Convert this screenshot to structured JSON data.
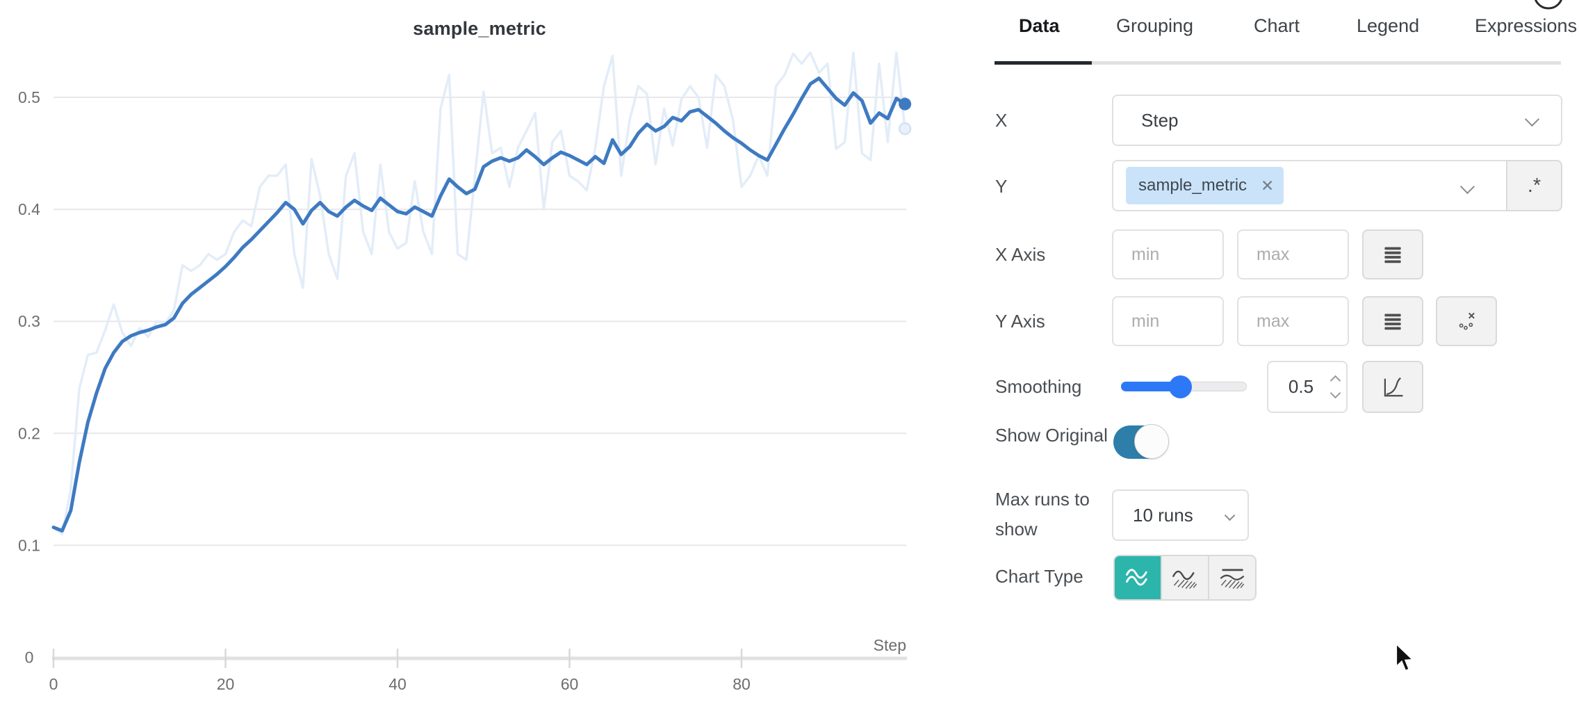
{
  "colors": {
    "smoothed_line": "#3e7ac2",
    "original_line": "#e3edf8",
    "grid": "#e8e8e8",
    "axis": "#e1e1e1",
    "slider_blue": "#2d78f6",
    "toggle_blue": "#2d7fa9",
    "selected_teal": "#2cb5ab",
    "chip_bg": "#cbe3f9"
  },
  "chart_data": {
    "type": "line",
    "title": "sample_metric",
    "xlabel": "Step",
    "ylabel": "",
    "xlim": [
      0,
      99
    ],
    "ylim": [
      0,
      0.54
    ],
    "grid": "horizontal only",
    "legend": "none",
    "x_ticks": [
      {
        "label": "0",
        "value": 0
      },
      {
        "label": "20",
        "value": 20
      },
      {
        "label": "40",
        "value": 40
      },
      {
        "label": "60",
        "value": 60
      },
      {
        "label": "80",
        "value": 80
      }
    ],
    "y_ticks": [
      {
        "label": "0.5",
        "value": 0.5
      },
      {
        "label": "0.4",
        "value": 0.4
      },
      {
        "label": "0.3",
        "value": 0.3
      },
      {
        "label": "0.2",
        "value": 0.2
      },
      {
        "label": "0.1",
        "value": 0.1
      },
      {
        "label": "0",
        "value": 0
      }
    ],
    "x_step": 1,
    "series": [
      {
        "name": "sample_metric (original, unsmoothed)",
        "values": [
          0.116,
          0.11,
          0.15,
          0.24,
          0.27,
          0.272,
          0.292,
          0.315,
          0.29,
          0.278,
          0.294,
          0.286,
          0.3,
          0.298,
          0.31,
          0.35,
          0.345,
          0.35,
          0.36,
          0.355,
          0.36,
          0.38,
          0.39,
          0.385,
          0.42,
          0.43,
          0.43,
          0.44,
          0.36,
          0.33,
          0.445,
          0.412,
          0.36,
          0.338,
          0.43,
          0.45,
          0.38,
          0.36,
          0.44,
          0.38,
          0.365,
          0.37,
          0.425,
          0.38,
          0.36,
          0.49,
          0.52,
          0.36,
          0.355,
          0.43,
          0.505,
          0.45,
          0.455,
          0.42,
          0.455,
          0.47,
          0.486,
          0.4,
          0.46,
          0.47,
          0.43,
          0.425,
          0.417,
          0.455,
          0.51,
          0.537,
          0.43,
          0.48,
          0.51,
          0.503,
          0.44,
          0.49,
          0.457,
          0.498,
          0.51,
          0.5,
          0.455,
          0.52,
          0.51,
          0.48,
          0.42,
          0.43,
          0.448,
          0.43,
          0.51,
          0.52,
          0.539,
          0.53,
          0.54,
          0.522,
          0.53,
          0.454,
          0.46,
          0.54,
          0.45,
          0.444,
          0.53,
          0.46,
          0.54,
          0.472
        ]
      },
      {
        "name": "sample_metric (smoothed 0.5)",
        "values": [
          0.116,
          0.113,
          0.131,
          0.174,
          0.21,
          0.236,
          0.258,
          0.272,
          0.282,
          0.287,
          0.29,
          0.292,
          0.295,
          0.297,
          0.303,
          0.316,
          0.324,
          0.33,
          0.336,
          0.342,
          0.349,
          0.357,
          0.366,
          0.373,
          0.381,
          0.389,
          0.397,
          0.406,
          0.4,
          0.387,
          0.399,
          0.406,
          0.398,
          0.394,
          0.402,
          0.408,
          0.403,
          0.399,
          0.41,
          0.404,
          0.398,
          0.396,
          0.402,
          0.398,
          0.394,
          0.412,
          0.427,
          0.42,
          0.414,
          0.418,
          0.438,
          0.443,
          0.446,
          0.443,
          0.446,
          0.453,
          0.447,
          0.44,
          0.446,
          0.451,
          0.448,
          0.444,
          0.44,
          0.447,
          0.441,
          0.462,
          0.449,
          0.456,
          0.468,
          0.476,
          0.47,
          0.474,
          0.482,
          0.479,
          0.487,
          0.489,
          0.483,
          0.477,
          0.47,
          0.464,
          0.459,
          0.453,
          0.448,
          0.444,
          0.458,
          0.472,
          0.485,
          0.499,
          0.512,
          0.517,
          0.508,
          0.499,
          0.493,
          0.504,
          0.497,
          0.477,
          0.486,
          0.481,
          0.499,
          0.494
        ]
      }
    ]
  },
  "panel": {
    "tabs": [
      {
        "label": "Data",
        "active": true
      },
      {
        "label": "Grouping",
        "active": false
      },
      {
        "label": "Chart",
        "active": false
      },
      {
        "label": "Legend",
        "active": false
      },
      {
        "label": "Expressions",
        "active": false
      }
    ],
    "x_row": {
      "label": "X",
      "value": "Step"
    },
    "y_row": {
      "label": "Y",
      "chip": "sample_metric",
      "chip_remove": "✕",
      "regex_button": ".*"
    },
    "x_axis_row": {
      "label": "X Axis",
      "min_placeholder": "min",
      "max_placeholder": "max"
    },
    "y_axis_row": {
      "label": "Y Axis",
      "min_placeholder": "min",
      "max_placeholder": "max"
    },
    "smoothing_row": {
      "label": "Smoothing",
      "value": "0.5"
    },
    "show_original_row": {
      "label": "Show Original",
      "state": "on"
    },
    "max_runs_row": {
      "label": "Max runs to show",
      "value": "10 runs"
    },
    "chart_type_row": {
      "label": "Chart Type",
      "selected": "line",
      "options": [
        "line-chart",
        "area-chart",
        "percentile-chart"
      ]
    }
  }
}
